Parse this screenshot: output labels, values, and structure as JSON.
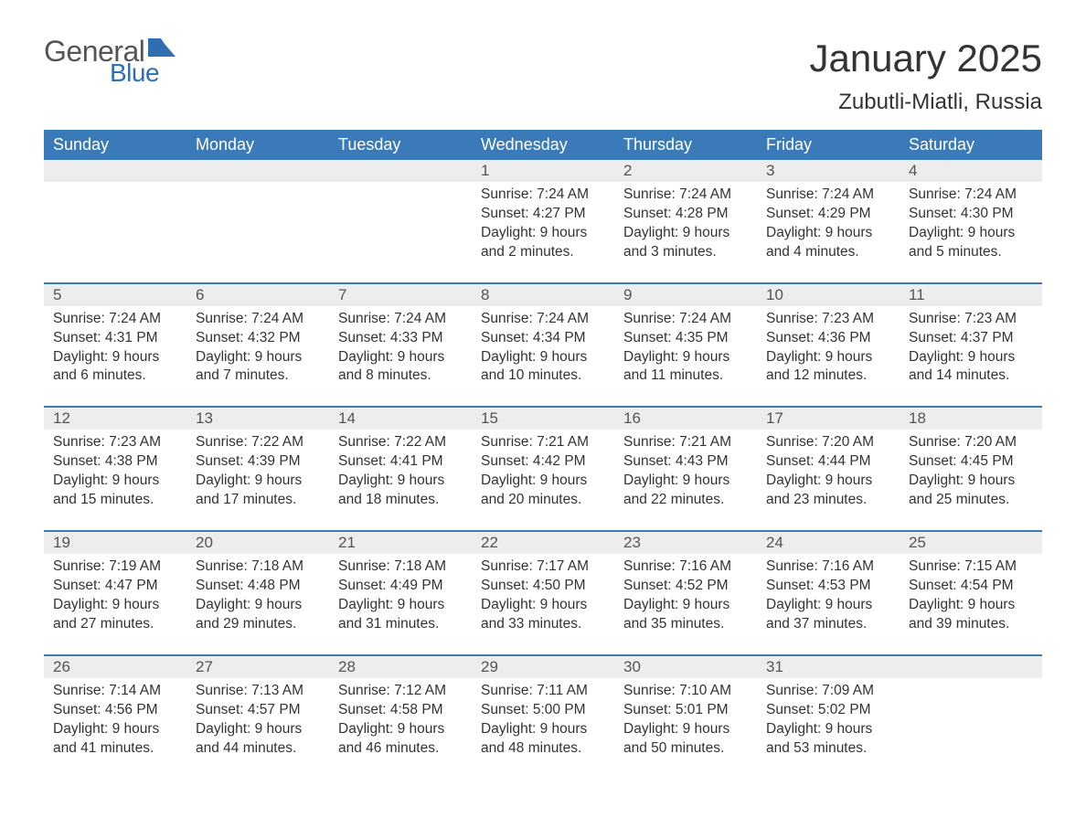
{
  "logo": {
    "general": "General",
    "blue": "Blue"
  },
  "title": "January 2025",
  "location": "Zubutli-Miatli, Russia",
  "theme": {
    "header_bg": "#3a7ab8",
    "header_fg": "#ffffff",
    "daynum_bg": "#ededed",
    "rule_color": "#3a7ab8",
    "text_color": "#333333",
    "logo_gray": "#555555",
    "logo_blue": "#2f6fb0",
    "page_bg": "#ffffff"
  },
  "columns": [
    "Sunday",
    "Monday",
    "Tuesday",
    "Wednesday",
    "Thursday",
    "Friday",
    "Saturday"
  ],
  "weeks": [
    [
      null,
      null,
      null,
      {
        "n": "1",
        "sr": "7:24 AM",
        "ss": "4:27 PM",
        "dl": "9 hours and 2 minutes."
      },
      {
        "n": "2",
        "sr": "7:24 AM",
        "ss": "4:28 PM",
        "dl": "9 hours and 3 minutes."
      },
      {
        "n": "3",
        "sr": "7:24 AM",
        "ss": "4:29 PM",
        "dl": "9 hours and 4 minutes."
      },
      {
        "n": "4",
        "sr": "7:24 AM",
        "ss": "4:30 PM",
        "dl": "9 hours and 5 minutes."
      }
    ],
    [
      {
        "n": "5",
        "sr": "7:24 AM",
        "ss": "4:31 PM",
        "dl": "9 hours and 6 minutes."
      },
      {
        "n": "6",
        "sr": "7:24 AM",
        "ss": "4:32 PM",
        "dl": "9 hours and 7 minutes."
      },
      {
        "n": "7",
        "sr": "7:24 AM",
        "ss": "4:33 PM",
        "dl": "9 hours and 8 minutes."
      },
      {
        "n": "8",
        "sr": "7:24 AM",
        "ss": "4:34 PM",
        "dl": "9 hours and 10 minutes."
      },
      {
        "n": "9",
        "sr": "7:24 AM",
        "ss": "4:35 PM",
        "dl": "9 hours and 11 minutes."
      },
      {
        "n": "10",
        "sr": "7:23 AM",
        "ss": "4:36 PM",
        "dl": "9 hours and 12 minutes."
      },
      {
        "n": "11",
        "sr": "7:23 AM",
        "ss": "4:37 PM",
        "dl": "9 hours and 14 minutes."
      }
    ],
    [
      {
        "n": "12",
        "sr": "7:23 AM",
        "ss": "4:38 PM",
        "dl": "9 hours and 15 minutes."
      },
      {
        "n": "13",
        "sr": "7:22 AM",
        "ss": "4:39 PM",
        "dl": "9 hours and 17 minutes."
      },
      {
        "n": "14",
        "sr": "7:22 AM",
        "ss": "4:41 PM",
        "dl": "9 hours and 18 minutes."
      },
      {
        "n": "15",
        "sr": "7:21 AM",
        "ss": "4:42 PM",
        "dl": "9 hours and 20 minutes."
      },
      {
        "n": "16",
        "sr": "7:21 AM",
        "ss": "4:43 PM",
        "dl": "9 hours and 22 minutes."
      },
      {
        "n": "17",
        "sr": "7:20 AM",
        "ss": "4:44 PM",
        "dl": "9 hours and 23 minutes."
      },
      {
        "n": "18",
        "sr": "7:20 AM",
        "ss": "4:45 PM",
        "dl": "9 hours and 25 minutes."
      }
    ],
    [
      {
        "n": "19",
        "sr": "7:19 AM",
        "ss": "4:47 PM",
        "dl": "9 hours and 27 minutes."
      },
      {
        "n": "20",
        "sr": "7:18 AM",
        "ss": "4:48 PM",
        "dl": "9 hours and 29 minutes."
      },
      {
        "n": "21",
        "sr": "7:18 AM",
        "ss": "4:49 PM",
        "dl": "9 hours and 31 minutes."
      },
      {
        "n": "22",
        "sr": "7:17 AM",
        "ss": "4:50 PM",
        "dl": "9 hours and 33 minutes."
      },
      {
        "n": "23",
        "sr": "7:16 AM",
        "ss": "4:52 PM",
        "dl": "9 hours and 35 minutes."
      },
      {
        "n": "24",
        "sr": "7:16 AM",
        "ss": "4:53 PM",
        "dl": "9 hours and 37 minutes."
      },
      {
        "n": "25",
        "sr": "7:15 AM",
        "ss": "4:54 PM",
        "dl": "9 hours and 39 minutes."
      }
    ],
    [
      {
        "n": "26",
        "sr": "7:14 AM",
        "ss": "4:56 PM",
        "dl": "9 hours and 41 minutes."
      },
      {
        "n": "27",
        "sr": "7:13 AM",
        "ss": "4:57 PM",
        "dl": "9 hours and 44 minutes."
      },
      {
        "n": "28",
        "sr": "7:12 AM",
        "ss": "4:58 PM",
        "dl": "9 hours and 46 minutes."
      },
      {
        "n": "29",
        "sr": "7:11 AM",
        "ss": "5:00 PM",
        "dl": "9 hours and 48 minutes."
      },
      {
        "n": "30",
        "sr": "7:10 AM",
        "ss": "5:01 PM",
        "dl": "9 hours and 50 minutes."
      },
      {
        "n": "31",
        "sr": "7:09 AM",
        "ss": "5:02 PM",
        "dl": "9 hours and 53 minutes."
      },
      null
    ]
  ],
  "labels": {
    "sunrise_prefix": "Sunrise: ",
    "sunset_prefix": "Sunset: ",
    "daylight_prefix": "Daylight: "
  }
}
